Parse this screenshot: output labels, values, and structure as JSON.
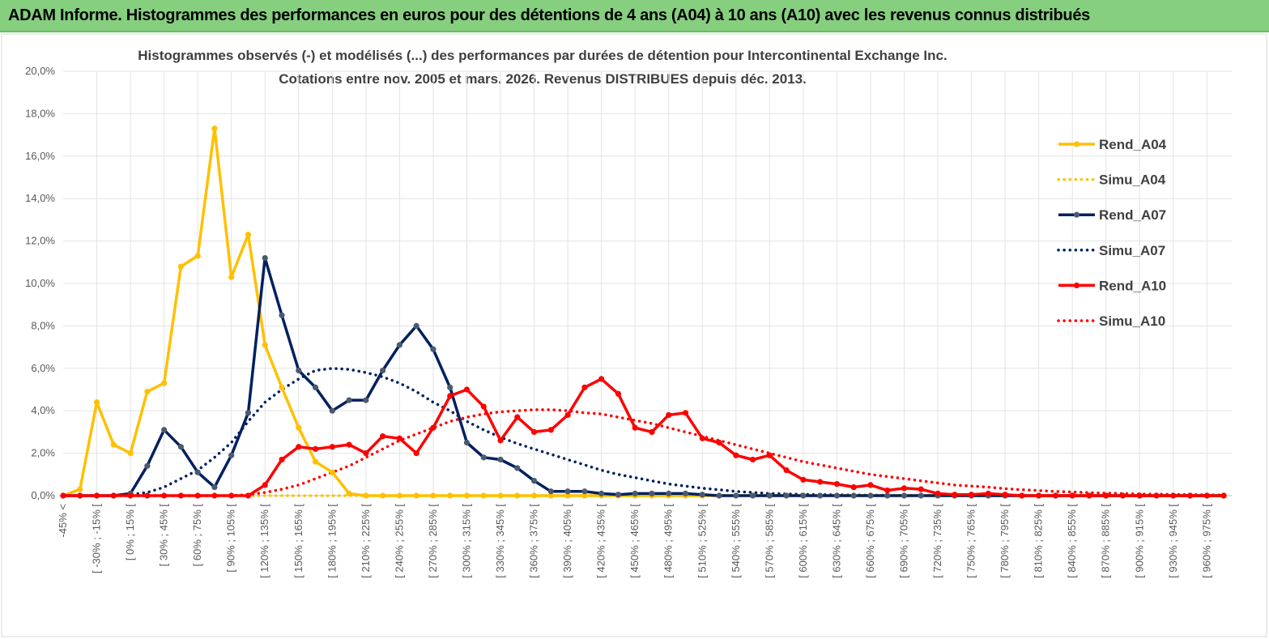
{
  "header": {
    "title": "ADAM Informe. Histogrammes des performances en euros pour des détentions de 4 ans (A04) à 10 ans (A10) avec les revenus connus distribués"
  },
  "chart_data": {
    "type": "line",
    "title": "Histogrammes observés (-)  et modélisés (...) des performances par durées de détention pour Intercontinental Exchange Inc.",
    "subtitle": "Cotations entre nov. 2005 et mars. 2026.  Revenus DISTRIBUES depuis déc. 2013.",
    "categories": [
      "-45% <",
      null,
      "[ -30% ; -15% [",
      null,
      "[ 0% ; 15% [",
      null,
      "[ 30% ; 45% [",
      null,
      "[ 60% ; 75% [",
      null,
      "[ 90% ; 105% [",
      null,
      "[ 120% ; 135% [",
      null,
      "[ 150% ; 165% [",
      null,
      "[ 180% ; 195% [",
      null,
      "[ 210% ; 225% [",
      null,
      "[ 240% ; 255% [",
      null,
      "[ 270% ; 285% [",
      null,
      "[ 300% ; 315% [",
      null,
      "[ 330% ; 345% [",
      null,
      "[ 360% ; 375% [",
      null,
      "[ 390% ; 405% [",
      null,
      "[ 420% ; 435% [",
      null,
      "[ 450% ; 465% [",
      null,
      "[ 480% ; 495% [",
      null,
      "[ 510% ; 525% [",
      null,
      "[ 540% ; 555% [",
      null,
      "[ 570% ; 585% [",
      null,
      "[ 600% ; 615% [",
      null,
      "[ 630% ; 645% [",
      null,
      "[ 660% ; 675% [",
      null,
      "[ 690% ; 705% [",
      null,
      "[ 720% ; 735% [",
      null,
      "[ 750% ; 765% [",
      null,
      "[ 780% ; 795% [",
      null,
      "[ 810% ; 825% [",
      null,
      "[ 840% ; 855% [",
      null,
      "[ 870% ; 885% [",
      null,
      "[ 900% ; 915% [",
      null,
      "[ 930% ; 945% [",
      null,
      "[ 960% ; 975% [",
      null
    ],
    "ylim": [
      0,
      20
    ],
    "yticks": [
      {
        "value": 0,
        "label": "0,0%"
      },
      {
        "value": 2,
        "label": "2,0%"
      },
      {
        "value": 4,
        "label": "4,0%"
      },
      {
        "value": 6,
        "label": "6,0%"
      },
      {
        "value": 8,
        "label": "8,0%"
      },
      {
        "value": 10,
        "label": "10,0%"
      },
      {
        "value": 12,
        "label": "12,0%"
      },
      {
        "value": 14,
        "label": "14,0%"
      },
      {
        "value": 16,
        "label": "16,0%"
      },
      {
        "value": 18,
        "label": "18,0%"
      },
      {
        "value": 20,
        "label": "20,0%"
      }
    ],
    "grid": true,
    "legend": "right",
    "series": [
      {
        "name": "Rend_A04",
        "color": "#ffc000",
        "marker_color": "#ffc000",
        "style": "solid",
        "markers": true,
        "values": [
          0,
          0.3,
          4.4,
          2.4,
          2.0,
          4.9,
          5.3,
          10.8,
          11.3,
          17.3,
          10.3,
          12.3,
          7.1,
          5.1,
          3.2,
          1.6,
          1.1,
          0.1,
          0,
          0,
          0,
          0,
          0,
          0,
          0,
          0,
          0,
          0,
          0,
          0,
          0,
          0,
          0,
          0,
          0,
          0,
          0,
          0,
          0,
          0,
          0,
          0,
          0,
          0,
          0,
          0,
          0,
          0,
          0,
          0,
          0,
          0,
          0,
          0,
          0,
          0,
          0,
          0,
          0,
          0,
          0,
          0,
          0,
          0,
          0,
          0,
          0,
          0,
          0,
          0
        ]
      },
      {
        "name": "Simu_A04",
        "color": "#ffc000",
        "style": "dotted",
        "markers": false,
        "values": [
          0,
          0,
          0,
          0,
          0,
          0,
          0,
          0,
          0,
          0,
          0,
          0,
          0,
          0,
          0,
          0,
          0,
          0,
          0,
          0,
          0,
          0,
          0,
          0,
          0,
          0,
          0,
          0,
          0,
          0,
          0,
          0,
          0,
          0,
          0,
          0,
          0,
          0,
          0,
          0,
          0,
          0,
          0,
          0,
          0,
          0,
          0,
          0,
          0,
          0,
          0,
          0,
          0,
          0,
          0,
          0,
          0,
          0,
          0,
          0,
          0,
          0,
          0,
          0,
          0,
          0,
          0,
          0,
          0,
          0
        ]
      },
      {
        "name": "Rend_A07",
        "color": "#002060",
        "marker_color": "#4a5a70",
        "style": "solid",
        "markers": true,
        "values": [
          0,
          0,
          0,
          0,
          0.1,
          1.4,
          3.1,
          2.3,
          1.1,
          0.4,
          1.9,
          3.9,
          11.2,
          8.5,
          5.9,
          5.1,
          4.0,
          4.5,
          4.5,
          5.9,
          7.1,
          8.0,
          6.9,
          5.1,
          2.5,
          1.8,
          1.7,
          1.3,
          0.7,
          0.2,
          0.2,
          0.2,
          0.1,
          0.05,
          0.1,
          0.1,
          0.1,
          0.1,
          0.05,
          0,
          0,
          0,
          0,
          0,
          0,
          0,
          0,
          0,
          0,
          0,
          0,
          0,
          0,
          0,
          0,
          0,
          0,
          0,
          0,
          0,
          0,
          0,
          0,
          0,
          0,
          0,
          0,
          0,
          0,
          0
        ]
      },
      {
        "name": "Simu_A07",
        "color": "#002060",
        "style": "dotted",
        "markers": false,
        "values": [
          0,
          0,
          0,
          0,
          0.05,
          0.15,
          0.4,
          0.8,
          1.2,
          1.8,
          2.5,
          3.5,
          4.4,
          5.0,
          5.5,
          5.9,
          6.0,
          5.95,
          5.8,
          5.6,
          5.3,
          4.9,
          4.4,
          4.0,
          3.5,
          3.1,
          2.75,
          2.45,
          2.2,
          1.95,
          1.7,
          1.45,
          1.2,
          1.0,
          0.85,
          0.7,
          0.55,
          0.45,
          0.35,
          0.28,
          0.2,
          0.15,
          0.1,
          0.08,
          0.06,
          0.05,
          0.04,
          0.03,
          0.02,
          0.02,
          0.01,
          0.01,
          0,
          0,
          0,
          0,
          0,
          0,
          0,
          0,
          0,
          0,
          0,
          0,
          0,
          0,
          0,
          0,
          0,
          0
        ]
      },
      {
        "name": "Rend_A10",
        "color": "#ff0000",
        "marker_color": "#ff0000",
        "style": "solid",
        "markers": true,
        "values": [
          0,
          0,
          0,
          0,
          0,
          0,
          0,
          0,
          0,
          0,
          0,
          0,
          0.5,
          1.7,
          2.3,
          2.2,
          2.3,
          2.4,
          2.0,
          2.8,
          2.7,
          2.0,
          3.2,
          4.7,
          5.0,
          4.2,
          2.6,
          3.7,
          3.0,
          3.1,
          3.8,
          5.1,
          5.5,
          4.8,
          3.2,
          3.0,
          3.8,
          3.9,
          2.7,
          2.5,
          1.9,
          1.7,
          1.9,
          1.2,
          0.75,
          0.65,
          0.55,
          0.4,
          0.5,
          0.25,
          0.35,
          0.3,
          0.1,
          0.05,
          0.05,
          0.1,
          0.05,
          0,
          0,
          0,
          0,
          0,
          0,
          0,
          0,
          0,
          0,
          0,
          0,
          0
        ]
      },
      {
        "name": "Simu_A10",
        "color": "#ff0000",
        "style": "dotted",
        "markers": false,
        "values": [
          0,
          0,
          0,
          0,
          0,
          0,
          0,
          0,
          0,
          0,
          0,
          0.05,
          0.15,
          0.3,
          0.5,
          0.8,
          1.1,
          1.4,
          1.8,
          2.2,
          2.6,
          2.9,
          3.2,
          3.5,
          3.7,
          3.85,
          3.95,
          4.0,
          4.05,
          4.05,
          4.0,
          3.9,
          3.85,
          3.7,
          3.55,
          3.4,
          3.2,
          3.0,
          2.8,
          2.6,
          2.4,
          2.2,
          2.0,
          1.8,
          1.6,
          1.45,
          1.3,
          1.15,
          1.0,
          0.9,
          0.8,
          0.7,
          0.6,
          0.5,
          0.45,
          0.4,
          0.33,
          0.28,
          0.24,
          0.2,
          0.17,
          0.14,
          0.12,
          0.1,
          0.08,
          0.07,
          0.06,
          0.05,
          0.04,
          0.03
        ]
      }
    ]
  }
}
